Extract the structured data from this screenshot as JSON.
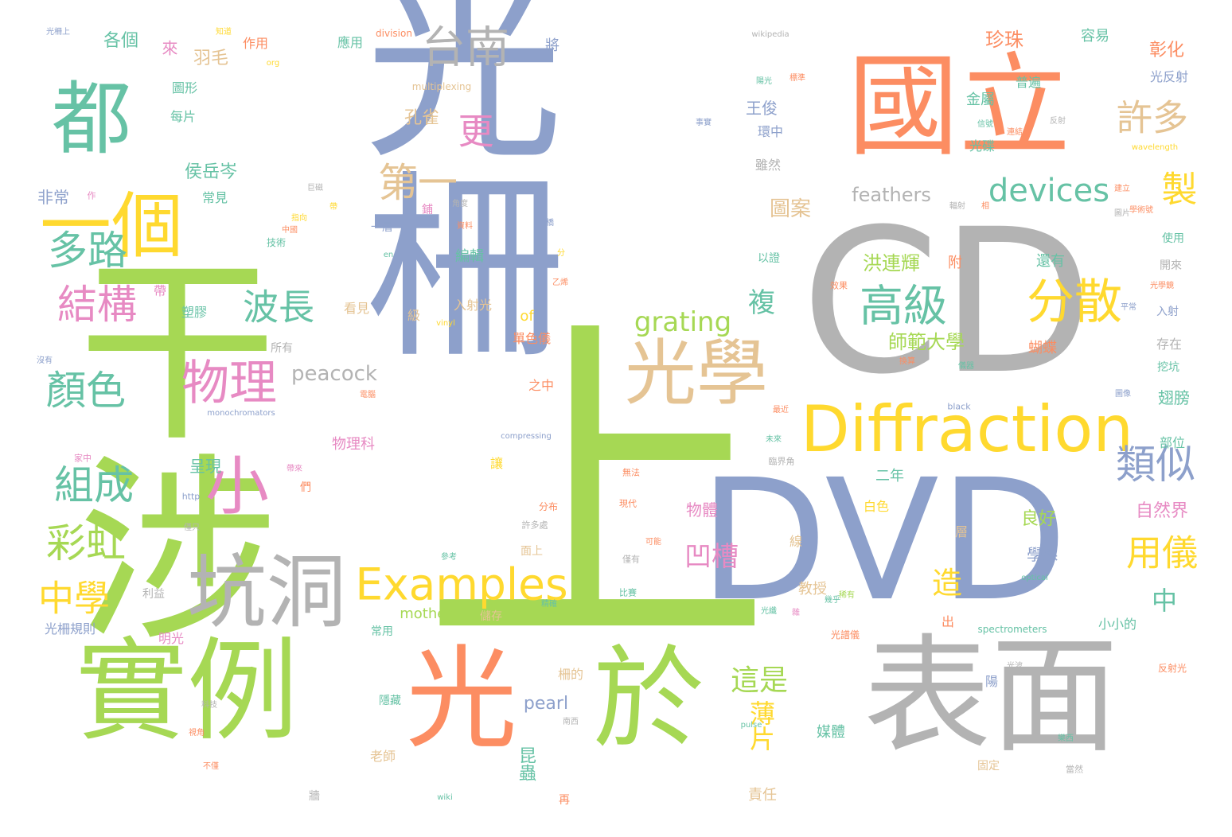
{
  "palette": {
    "blue": "#8da0cb",
    "green": "#a6d854",
    "teal": "#66c2a5",
    "orange": "#fc8d62",
    "grey": "#b3b3b3",
    "yellow": "#ffd92f",
    "tan": "#e5c494",
    "pink": "#e78ac3"
  },
  "words": [
    {
      "text": "光柵",
      "color": "blue"
    },
    {
      "text": "干涉",
      "color": "green"
    },
    {
      "text": "上",
      "color": "green"
    },
    {
      "text": "CD",
      "color": "grey"
    },
    {
      "text": "DVD",
      "color": "blue"
    },
    {
      "text": "國立",
      "color": "orange"
    },
    {
      "text": "表面",
      "color": "grey"
    },
    {
      "text": "實例",
      "color": "green"
    },
    {
      "text": "光",
      "color": "orange"
    },
    {
      "text": "於",
      "color": "green"
    },
    {
      "text": "都",
      "color": "teal"
    },
    {
      "text": "一個",
      "color": "yellow"
    },
    {
      "text": "Diffraction",
      "color": "yellow"
    },
    {
      "text": "光學",
      "color": "tan"
    },
    {
      "text": "坑洞",
      "color": "grey"
    },
    {
      "text": "Examples",
      "color": "yellow"
    },
    {
      "text": "小",
      "color": "pink"
    },
    {
      "text": "物理",
      "color": "pink"
    },
    {
      "text": "分散",
      "color": "yellow"
    },
    {
      "text": "高級",
      "color": "teal"
    },
    {
      "text": "devices",
      "color": "teal"
    },
    {
      "text": "台南",
      "color": "grey"
    },
    {
      "text": "第一",
      "color": "tan"
    },
    {
      "text": "更",
      "color": "pink"
    },
    {
      "text": "多路",
      "color": "teal"
    },
    {
      "text": "結構",
      "color": "pink"
    },
    {
      "text": "顏色",
      "color": "teal"
    },
    {
      "text": "組成",
      "color": "teal"
    },
    {
      "text": "彩虹",
      "color": "green"
    },
    {
      "text": "中學",
      "color": "yellow"
    },
    {
      "text": "波長",
      "color": "teal"
    },
    {
      "text": "類似",
      "color": "blue"
    },
    {
      "text": "許多",
      "color": "tan"
    },
    {
      "text": "製",
      "color": "yellow"
    },
    {
      "text": "用儀",
      "color": "yellow"
    },
    {
      "text": "grating",
      "color": "green"
    },
    {
      "text": "凹槽",
      "color": "pink"
    },
    {
      "text": "薄片",
      "color": "yellow"
    },
    {
      "text": "這是",
      "color": "green"
    },
    {
      "text": "複",
      "color": "teal"
    },
    {
      "text": "造",
      "color": "yellow"
    },
    {
      "text": "中",
      "color": "teal"
    },
    {
      "text": "peacock",
      "color": "grey"
    },
    {
      "text": "feathers",
      "color": "grey"
    },
    {
      "text": "mother",
      "color": "green"
    },
    {
      "text": "pearl",
      "color": "blue"
    },
    {
      "text": "of",
      "color": "yellow"
    },
    {
      "text": "圖案",
      "color": "tan"
    },
    {
      "text": "珍珠",
      "color": "orange"
    },
    {
      "text": "洪連輝",
      "color": "green"
    },
    {
      "text": "師範大學",
      "color": "green"
    },
    {
      "text": "孔雀",
      "color": "tan"
    },
    {
      "text": "羽毛",
      "color": "tan"
    },
    {
      "text": "侯岳岑",
      "color": "teal"
    },
    {
      "text": "王俊",
      "color": "blue"
    },
    {
      "text": "昆蟲",
      "color": "teal"
    },
    {
      "text": "彰化",
      "color": "orange"
    },
    {
      "text": "光反射",
      "color": "blue"
    },
    {
      "text": "容易",
      "color": "teal"
    },
    {
      "text": "金屬",
      "color": "teal"
    },
    {
      "text": "普遍",
      "color": "teal"
    },
    {
      "text": "光碟",
      "color": "teal"
    },
    {
      "text": "環中",
      "color": "blue"
    },
    {
      "text": "各個",
      "color": "teal"
    },
    {
      "text": "來",
      "color": "pink"
    },
    {
      "text": "作用",
      "color": "orange"
    },
    {
      "text": "應用",
      "color": "teal"
    },
    {
      "text": "將",
      "color": "blue"
    },
    {
      "text": "圖形",
      "color": "teal"
    },
    {
      "text": "每片",
      "color": "teal"
    },
    {
      "text": "非常",
      "color": "blue"
    },
    {
      "text": "常見",
      "color": "teal"
    },
    {
      "text": "雖然",
      "color": "grey"
    },
    {
      "text": "自然界",
      "color": "pink"
    },
    {
      "text": "教授",
      "color": "tan"
    },
    {
      "text": "二年",
      "color": "teal"
    },
    {
      "text": "良好",
      "color": "green"
    },
    {
      "text": "學系",
      "color": "blue"
    },
    {
      "text": "還有",
      "color": "teal"
    },
    {
      "text": "附",
      "color": "orange"
    },
    {
      "text": "蝴蝶",
      "color": "orange"
    },
    {
      "text": "入射",
      "color": "blue"
    },
    {
      "text": "使用",
      "color": "teal"
    },
    {
      "text": "開來",
      "color": "grey"
    },
    {
      "text": "存在",
      "color": "grey"
    },
    {
      "text": "挖坑",
      "color": "teal"
    },
    {
      "text": "翅膀",
      "color": "teal"
    },
    {
      "text": "部位",
      "color": "teal"
    },
    {
      "text": "呈現",
      "color": "teal"
    },
    {
      "text": "物理科",
      "color": "pink"
    },
    {
      "text": "塑膠",
      "color": "teal"
    },
    {
      "text": "看見",
      "color": "tan"
    },
    {
      "text": "所有",
      "color": "grey"
    },
    {
      "text": "級",
      "color": "tan"
    },
    {
      "text": "入射光",
      "color": "tan"
    },
    {
      "text": "單色儀",
      "color": "orange"
    },
    {
      "text": "之中",
      "color": "orange"
    },
    {
      "text": "編輯",
      "color": "teal"
    },
    {
      "text": "一層",
      "color": "blue"
    },
    {
      "text": "以證",
      "color": "teal"
    },
    {
      "text": "物體",
      "color": "pink"
    },
    {
      "text": "層",
      "color": "tan"
    },
    {
      "text": "線",
      "color": "tan"
    },
    {
      "text": "白色",
      "color": "yellow"
    },
    {
      "text": "小小的",
      "color": "teal"
    },
    {
      "text": "儲存",
      "color": "tan"
    },
    {
      "text": "常用",
      "color": "teal"
    },
    {
      "text": "隱藏",
      "color": "teal"
    },
    {
      "text": "老師",
      "color": "tan"
    },
    {
      "text": "媒體",
      "color": "teal"
    },
    {
      "text": "責任",
      "color": "tan"
    },
    {
      "text": "固定",
      "color": "tan"
    },
    {
      "text": "陽",
      "color": "blue"
    },
    {
      "text": "出",
      "color": "orange"
    },
    {
      "text": "光柵規則",
      "color": "blue"
    },
    {
      "text": "明光",
      "color": "pink"
    },
    {
      "text": "利益",
      "color": "grey"
    },
    {
      "text": "柵的",
      "color": "tan"
    },
    {
      "text": "面上",
      "color": "tan"
    },
    {
      "text": "帶",
      "color": "pink"
    },
    {
      "text": "再",
      "color": "orange"
    },
    {
      "text": "牆",
      "color": "grey"
    },
    {
      "text": "光柵上",
      "color": "blue"
    },
    {
      "text": "知道",
      "color": "yellow"
    },
    {
      "text": "division",
      "color": "orange"
    },
    {
      "text": "wikipedia",
      "color": "grey"
    },
    {
      "text": "multiplexing",
      "color": "tan"
    },
    {
      "text": "org",
      "color": "yellow"
    },
    {
      "text": "monochromators",
      "color": "blue"
    },
    {
      "text": "compressing",
      "color": "blue"
    },
    {
      "text": "vinyl",
      "color": "yellow"
    },
    {
      "text": "en",
      "color": "teal"
    },
    {
      "text": "http",
      "color": "blue"
    },
    {
      "text": "black",
      "color": "blue"
    },
    {
      "text": "wavelength",
      "color": "yellow"
    },
    {
      "text": "spectrometers",
      "color": "teal"
    },
    {
      "text": "optical",
      "color": "teal"
    },
    {
      "text": "pulse",
      "color": "teal"
    },
    {
      "text": "wiki",
      "color": "teal"
    },
    {
      "text": "們",
      "color": "orange"
    },
    {
      "text": "讓",
      "color": "yellow"
    },
    {
      "text": "分布",
      "color": "orange"
    },
    {
      "text": "許多處",
      "color": "grey"
    },
    {
      "text": "鋪",
      "color": "pink"
    },
    {
      "text": "角度",
      "color": "grey"
    },
    {
      "text": "資料",
      "color": "orange"
    },
    {
      "text": "分",
      "color": "yellow"
    },
    {
      "text": "乙烯",
      "color": "orange"
    },
    {
      "text": "技術",
      "color": "teal"
    },
    {
      "text": "指向",
      "color": "yellow"
    },
    {
      "text": "中國",
      "color": "orange"
    },
    {
      "text": "巨磁",
      "color": "grey"
    },
    {
      "text": "作",
      "color": "pink"
    },
    {
      "text": "沒有",
      "color": "blue"
    },
    {
      "text": "家中",
      "color": "pink"
    },
    {
      "text": "帶來",
      "color": "pink"
    },
    {
      "text": "僅只",
      "color": "grey"
    },
    {
      "text": "參考",
      "color": "teal"
    },
    {
      "text": "無法",
      "color": "orange"
    },
    {
      "text": "現代",
      "color": "orange"
    },
    {
      "text": "僅有",
      "color": "grey"
    },
    {
      "text": "比賽",
      "color": "teal"
    },
    {
      "text": "光纖",
      "color": "teal"
    },
    {
      "text": "幾乎",
      "color": "teal"
    },
    {
      "text": "光譜儀",
      "color": "orange"
    },
    {
      "text": "科技",
      "color": "grey"
    },
    {
      "text": "視角",
      "color": "orange"
    },
    {
      "text": "不僅",
      "color": "orange"
    },
    {
      "text": "南西",
      "color": "grey"
    },
    {
      "text": "稀有",
      "color": "green"
    },
    {
      "text": "光波",
      "color": "grey"
    },
    {
      "text": "反射光",
      "color": "orange"
    },
    {
      "text": "樂西",
      "color": "teal"
    },
    {
      "text": "當然",
      "color": "grey"
    },
    {
      "text": "事實",
      "color": "blue"
    },
    {
      "text": "反射",
      "color": "grey"
    },
    {
      "text": "標準",
      "color": "orange"
    },
    {
      "text": "陽光",
      "color": "teal"
    },
    {
      "text": "信號",
      "color": "teal"
    },
    {
      "text": "建立",
      "color": "orange"
    },
    {
      "text": "學術號",
      "color": "orange"
    },
    {
      "text": "圖片",
      "color": "grey"
    },
    {
      "text": "光學鏡",
      "color": "orange"
    },
    {
      "text": "平常",
      "color": "blue"
    },
    {
      "text": "效果",
      "color": "orange"
    },
    {
      "text": "未來",
      "color": "teal"
    },
    {
      "text": "臨界角",
      "color": "grey"
    },
    {
      "text": "最近",
      "color": "orange"
    },
    {
      "text": "儀器",
      "color": "teal"
    },
    {
      "text": "圖像",
      "color": "blue"
    },
    {
      "text": "換算",
      "color": "orange"
    },
    {
      "text": "可能",
      "color": "orange"
    },
    {
      "text": "橋",
      "color": "blue"
    },
    {
      "text": "雜",
      "color": "pink"
    },
    {
      "text": "電腦",
      "color": "orange"
    },
    {
      "text": "連結",
      "color": "orange"
    },
    {
      "text": "輻射",
      "color": "grey"
    },
    {
      "text": "精確",
      "color": "teal"
    },
    {
      "text": "帶",
      "color": "yellow"
    },
    {
      "text": "相",
      "color": "orange"
    }
  ]
}
